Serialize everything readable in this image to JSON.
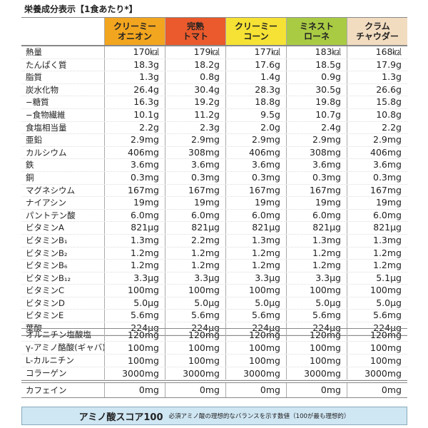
{
  "header": {
    "title": "栄養成分表示【1食あたり*】"
  },
  "columns": [
    {
      "name": "クリーミー\nオニオン",
      "color": "#f2a51f"
    },
    {
      "name": "完熟\nトマト",
      "color": "#ea5a2c"
    },
    {
      "name": "クリーミー\nコーン",
      "color": "#f6e234"
    },
    {
      "name": "ミネスト\nローネ",
      "color": "#a9cb44"
    },
    {
      "name": "クラム\nチャウダー",
      "color": "#f2dcc0"
    }
  ],
  "sections": [
    {
      "rows": [
        {
          "label": "熱量",
          "values": [
            "170㎉",
            "179㎉",
            "177㎉",
            "183㎉",
            "168㎉"
          ]
        },
        {
          "label": "たんぱく質",
          "values": [
            "18.3g",
            "18.2g",
            "17.6g",
            "18.5g",
            "17.9g"
          ]
        },
        {
          "label": "脂質",
          "values": [
            "1.3g",
            "0.8g",
            "1.4g",
            "0.9g",
            "1.3g"
          ]
        },
        {
          "label": "炭水化物",
          "values": [
            "26.4g",
            "30.4g",
            "28.3g",
            "30.5g",
            "26.6g"
          ]
        },
        {
          "label": "−糖質",
          "values": [
            "16.3g",
            "19.2g",
            "18.8g",
            "19.8g",
            "15.8g"
          ]
        },
        {
          "label": "−食物繊維",
          "values": [
            "10.1g",
            "11.2g",
            "9.5g",
            "10.7g",
            "10.8g"
          ]
        },
        {
          "label": "食塩相当量",
          "values": [
            "2.2g",
            "2.3g",
            "2.0g",
            "2.4g",
            "2.2g"
          ]
        },
        {
          "label": "亜鉛",
          "values": [
            "2.9mg",
            "2.9mg",
            "2.9mg",
            "2.9mg",
            "2.9mg"
          ]
        },
        {
          "label": "カルシウム",
          "values": [
            "406mg",
            "308mg",
            "406mg",
            "308mg",
            "406mg"
          ]
        },
        {
          "label": "鉄",
          "values": [
            "3.6mg",
            "3.6mg",
            "3.6mg",
            "3.6mg",
            "3.6mg"
          ]
        },
        {
          "label": "銅",
          "values": [
            "0.3mg",
            "0.3mg",
            "0.3mg",
            "0.3mg",
            "0.3mg"
          ]
        },
        {
          "label": "マグネシウム",
          "values": [
            "167mg",
            "167mg",
            "167mg",
            "167mg",
            "167mg"
          ]
        },
        {
          "label": "ナイアシン",
          "values": [
            "19mg",
            "19mg",
            "19mg",
            "19mg",
            "19mg"
          ]
        },
        {
          "label": "パントテン酸",
          "values": [
            "6.0mg",
            "6.0mg",
            "6.0mg",
            "6.0mg",
            "6.0mg"
          ]
        },
        {
          "label": "ビタミンA",
          "values": [
            "821μg",
            "821μg",
            "821μg",
            "821μg",
            "821μg"
          ]
        },
        {
          "label": "ビタミンB₁",
          "values": [
            "1.3mg",
            "2.2mg",
            "1.3mg",
            "1.3mg",
            "1.3mg"
          ]
        },
        {
          "label": "ビタミンB₂",
          "values": [
            "1.2mg",
            "1.2mg",
            "1.2mg",
            "1.2mg",
            "1.2mg"
          ]
        },
        {
          "label": "ビタミンB₆",
          "values": [
            "1.2mg",
            "1.2mg",
            "1.2mg",
            "1.2mg",
            "1.2mg"
          ]
        },
        {
          "label": "ビタミンB₁₂",
          "values": [
            "3.3μg",
            "3.3μg",
            "3.3μg",
            "3.3μg",
            "5.1μg"
          ]
        },
        {
          "label": "ビタミンC",
          "values": [
            "100mg",
            "100mg",
            "100mg",
            "100mg",
            "100mg"
          ]
        },
        {
          "label": "ビタミンD",
          "values": [
            "5.0μg",
            "5.0μg",
            "5.0μg",
            "5.0μg",
            "5.0μg"
          ]
        },
        {
          "label": "ビタミンE",
          "values": [
            "5.6mg",
            "5.6mg",
            "5.6mg",
            "5.6mg",
            "5.6mg"
          ]
        },
        {
          "label": "葉酸",
          "values": [
            "224μg",
            "224μg",
            "224μg",
            "224μg",
            "224μg"
          ]
        }
      ]
    },
    {
      "rows": [
        {
          "label": "オルニチン塩酸塩",
          "values": [
            "120mg",
            "120mg",
            "120mg",
            "120mg",
            "120mg"
          ]
        },
        {
          "label": "γ-アミノ酪酸(ギャバ)",
          "values": [
            "100mg",
            "100mg",
            "100mg",
            "100mg",
            "100mg"
          ]
        },
        {
          "label": "L-カルニチン",
          "values": [
            "100mg",
            "100mg",
            "100mg",
            "100mg",
            "100mg"
          ]
        },
        {
          "label": "コラーゲン",
          "values": [
            "3000mg",
            "3000mg",
            "3000mg",
            "3000mg",
            "3000mg"
          ]
        }
      ]
    },
    {
      "rows": [
        {
          "label": "カフェイン",
          "values": [
            "0mg",
            "0mg",
            "0mg",
            "0mg",
            "0mg"
          ]
        }
      ]
    }
  ],
  "footer": {
    "title": "アミノ酸スコア100",
    "note": "必須アミノ酸の理想的なバランスを示す数値（100が最も理想的）"
  }
}
